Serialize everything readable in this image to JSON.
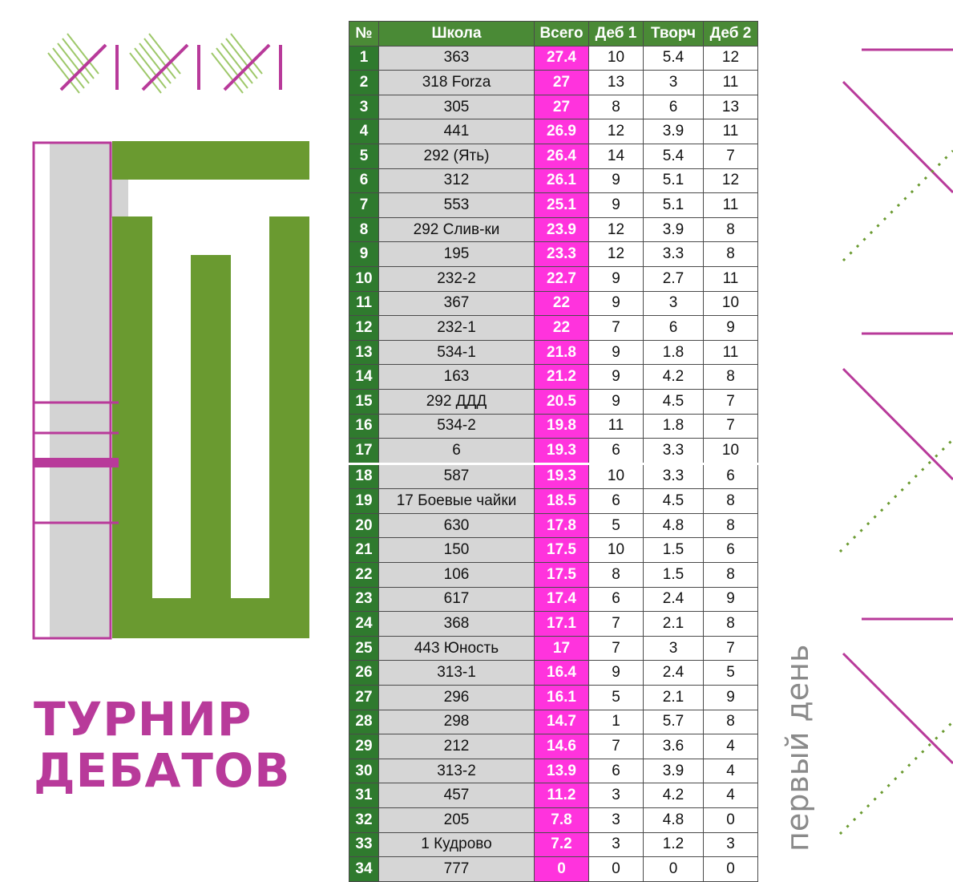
{
  "title": {
    "line1": "ТУРНИР",
    "line2": "ДЕБАТОВ"
  },
  "subtitle": "первый день",
  "colors": {
    "accent_magenta": "#b83a9a",
    "green": "#6a9a30",
    "total_pink": "#ff33dd",
    "header_green": "#4a8a36"
  },
  "table": {
    "headers": [
      "№",
      "Школа",
      "Всего",
      "Деб 1",
      "Творч",
      "Деб 2"
    ],
    "rows": [
      [
        "1",
        "363",
        "27.4",
        "10",
        "5.4",
        "12"
      ],
      [
        "2",
        "318 Forza",
        "27",
        "13",
        "3",
        "11"
      ],
      [
        "3",
        "305",
        "27",
        "8",
        "6",
        "13"
      ],
      [
        "4",
        "441",
        "26.9",
        "12",
        "3.9",
        "11"
      ],
      [
        "5",
        "292 (Ять)",
        "26.4",
        "14",
        "5.4",
        "7"
      ],
      [
        "6",
        "312",
        "26.1",
        "9",
        "5.1",
        "12"
      ],
      [
        "7",
        "553",
        "25.1",
        "9",
        "5.1",
        "11"
      ],
      [
        "8",
        "292 Слив-ки",
        "23.9",
        "12",
        "3.9",
        "8"
      ],
      [
        "9",
        "195",
        "23.3",
        "12",
        "3.3",
        "8"
      ],
      [
        "10",
        "232-2",
        "22.7",
        "9",
        "2.7",
        "11"
      ],
      [
        "11",
        "367",
        "22",
        "9",
        "3",
        "10"
      ],
      [
        "12",
        "232-1",
        "22",
        "7",
        "6",
        "9"
      ],
      [
        "13",
        "534-1",
        "21.8",
        "9",
        "1.8",
        "11"
      ],
      [
        "14",
        "163",
        "21.2",
        "9",
        "4.2",
        "8"
      ],
      [
        "15",
        "292 ДДД",
        "20.5",
        "9",
        "4.5",
        "7"
      ],
      [
        "16",
        "534-2",
        "19.8",
        "11",
        "1.8",
        "7"
      ],
      [
        "17",
        "6",
        "19.3",
        "6",
        "3.3",
        "10"
      ],
      [
        "18",
        "587",
        "19.3",
        "10",
        "3.3",
        "6"
      ],
      [
        "19",
        "17 Боевые чайки",
        "18.5",
        "6",
        "4.5",
        "8"
      ],
      [
        "20",
        "630",
        "17.8",
        "5",
        "4.8",
        "8"
      ],
      [
        "21",
        "150",
        "17.5",
        "10",
        "1.5",
        "6"
      ],
      [
        "22",
        "106",
        "17.5",
        "8",
        "1.5",
        "8"
      ],
      [
        "23",
        "617",
        "17.4",
        "6",
        "2.4",
        "9"
      ],
      [
        "24",
        "368",
        "17.1",
        "7",
        "2.1",
        "8"
      ],
      [
        "25",
        "443 Юность",
        "17",
        "7",
        "3",
        "7"
      ],
      [
        "26",
        "313-1",
        "16.4",
        "9",
        "2.4",
        "5"
      ],
      [
        "27",
        "296",
        "16.1",
        "5",
        "2.1",
        "9"
      ],
      [
        "28",
        "298",
        "14.7",
        "1",
        "5.7",
        "8"
      ],
      [
        "29",
        "212",
        "14.6",
        "7",
        "3.6",
        "4"
      ],
      [
        "30",
        "313-2",
        "13.9",
        "6",
        "3.9",
        "4"
      ],
      [
        "31",
        "457",
        "11.2",
        "3",
        "4.2",
        "4"
      ],
      [
        "32",
        "205",
        "7.8",
        "3",
        "4.8",
        "0"
      ],
      [
        "33",
        "1 Кудрово",
        "7.2",
        "3",
        "1.2",
        "3"
      ],
      [
        "34",
        "777",
        "0",
        "0",
        "0",
        "0"
      ]
    ]
  }
}
